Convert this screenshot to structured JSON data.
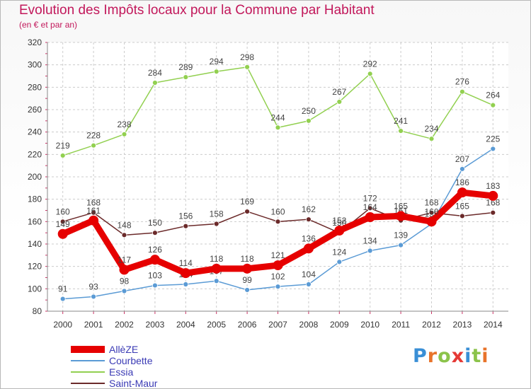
{
  "title": "Evolution des Impôts locaux pour la Commune par Habitant",
  "subtitle": "(en € et par an)",
  "logo": {
    "letters": [
      "P",
      "r",
      "o",
      "x",
      "i",
      "t",
      "i"
    ],
    "colors": [
      "#3a8fd6",
      "#e8732a",
      "#8bc34a",
      "#e53935",
      "#3a8fd6",
      "#8bc34a",
      "#e8732a"
    ]
  },
  "chart_data": {
    "type": "line",
    "x": [
      "2000",
      "2001",
      "2002",
      "2003",
      "2004",
      "2005",
      "2006",
      "2007",
      "2008",
      "2009",
      "2010",
      "2011",
      "2012",
      "2013",
      "2014"
    ],
    "ylim": [
      80,
      320
    ],
    "yticks": [
      80,
      100,
      120,
      140,
      160,
      180,
      200,
      220,
      240,
      260,
      280,
      300,
      320
    ],
    "grid": true,
    "legend_position": "bottom-left",
    "series": [
      {
        "name": "AllèZE",
        "color": "#e60000",
        "values": [
          149,
          161,
          117,
          126,
          114,
          118,
          118,
          121,
          136,
          152,
          164,
          165,
          160,
          186,
          183
        ]
      },
      {
        "name": "Courbette",
        "color": "#5b9bd5",
        "values": [
          91,
          93,
          98,
          103,
          104,
          107,
          99,
          102,
          104,
          124,
          134,
          139,
          158,
          207,
          225
        ]
      },
      {
        "name": "Essia",
        "color": "#92d050",
        "values": [
          219,
          228,
          238,
          284,
          289,
          294,
          298,
          244,
          250,
          267,
          292,
          241,
          234,
          276,
          264
        ]
      },
      {
        "name": "Saint-Maur",
        "color": "#6b2a2a",
        "values": [
          160,
          168,
          148,
          150,
          156,
          158,
          169,
          160,
          162,
          150,
          172,
          161,
          168,
          165,
          168
        ]
      }
    ]
  }
}
